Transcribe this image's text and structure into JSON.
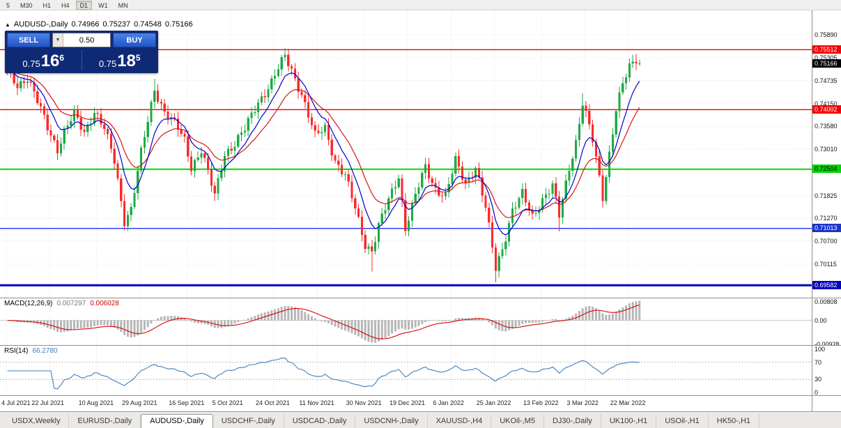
{
  "toolbar": {
    "timeframes": [
      {
        "label": "5",
        "active": false
      },
      {
        "label": "M30",
        "active": false
      },
      {
        "label": "H1",
        "active": false
      },
      {
        "label": "H4",
        "active": false
      },
      {
        "label": "D1",
        "active": true
      },
      {
        "label": "W1",
        "active": false
      },
      {
        "label": "MN",
        "active": false
      }
    ]
  },
  "chart_header": {
    "collapse_icon": "▲",
    "title": "AUDUSD-,Daily",
    "open": "0.74966",
    "high": "0.75237",
    "low": "0.74548",
    "close": "0.75166"
  },
  "trade_panel": {
    "sell_label": "SELL",
    "buy_label": "BUY",
    "volume": "0.50",
    "volume_dropdown_icon": "▼",
    "sell_price": {
      "base": "0.75",
      "big": "16",
      "sup": "6"
    },
    "buy_price": {
      "base": "0.75",
      "big": "18",
      "sup": "5"
    }
  },
  "price_axis": {
    "plain_labels": [
      "0.75890",
      "0.75305",
      "0.74735",
      "0.74150",
      "0.73580",
      "0.73010",
      "0.71825",
      "0.71270",
      "0.70700",
      "0.70115"
    ],
    "badges": [
      {
        "value": "0.75512",
        "bg": "#f40000",
        "fg": "#ffffff"
      },
      {
        "value": "0.75166",
        "bg": "#000000",
        "fg": "#ffffff"
      },
      {
        "value": "0.74002",
        "bg": "#f40000",
        "fg": "#ffffff"
      },
      {
        "value": "0.72504",
        "bg": "#00d400",
        "fg": "#000000"
      },
      {
        "value": "0.71013",
        "bg": "#1a35cc",
        "fg": "#ffffff"
      },
      {
        "value": "0.69582",
        "bg": "#0000bb",
        "fg": "#ffffff"
      }
    ]
  },
  "levels": [
    {
      "price": 0.75512,
      "color": "#f40000",
      "width": 1.4
    },
    {
      "price": 0.74002,
      "color": "#f40000",
      "width": 1.4
    },
    {
      "price": 0.72504,
      "color": "#00dd00",
      "width": 2
    },
    {
      "price": 0.71013,
      "color": "#2230ee",
      "width": 1.4
    },
    {
      "price": 0.69582,
      "color": "#0000bb",
      "width": 3
    }
  ],
  "chart_data": {
    "type": "candlestick",
    "symbol": "AUDUSD",
    "timeframe": "Daily",
    "bars": 190,
    "last_close": 0.75166,
    "price_range": {
      "top": 0.765,
      "bottom": 0.6927
    },
    "ma_fast_period": 8,
    "ma_slow_period": 17,
    "waypoints": [
      [
        0,
        0.7495
      ],
      [
        3,
        0.7462
      ],
      [
        6,
        0.7482
      ],
      [
        9,
        0.742
      ],
      [
        12,
        0.7356
      ],
      [
        15,
        0.7302
      ],
      [
        17,
        0.7345
      ],
      [
        20,
        0.7388
      ],
      [
        23,
        0.7342
      ],
      [
        26,
        0.7398
      ],
      [
        29,
        0.7352
      ],
      [
        32,
        0.727
      ],
      [
        35,
        0.7122
      ],
      [
        37,
        0.7152
      ],
      [
        40,
        0.729
      ],
      [
        44,
        0.7452
      ],
      [
        47,
        0.7396
      ],
      [
        50,
        0.7366
      ],
      [
        53,
        0.7322
      ],
      [
        55,
        0.7256
      ],
      [
        58,
        0.73
      ],
      [
        62,
        0.7182
      ],
      [
        65,
        0.729
      ],
      [
        68,
        0.7316
      ],
      [
        71,
        0.735
      ],
      [
        75,
        0.742
      ],
      [
        79,
        0.747
      ],
      [
        83,
        0.7534
      ],
      [
        85,
        0.75
      ],
      [
        88,
        0.744
      ],
      [
        92,
        0.7332
      ],
      [
        95,
        0.7356
      ],
      [
        98,
        0.7272
      ],
      [
        101,
        0.7232
      ],
      [
        104,
        0.7152
      ],
      [
        107,
        0.7062
      ],
      [
        109,
        0.7046
      ],
      [
        111,
        0.7106
      ],
      [
        114,
        0.7172
      ],
      [
        117,
        0.7236
      ],
      [
        119,
        0.7102
      ],
      [
        122,
        0.7182
      ],
      [
        125,
        0.7256
      ],
      [
        128,
        0.7202
      ],
      [
        131,
        0.7182
      ],
      [
        134,
        0.727
      ],
      [
        137,
        0.7216
      ],
      [
        140,
        0.7256
      ],
      [
        143,
        0.7152
      ],
      [
        146,
        0.7002
      ],
      [
        148,
        0.7052
      ],
      [
        151,
        0.7146
      ],
      [
        154,
        0.7186
      ],
      [
        157,
        0.7132
      ],
      [
        160,
        0.7176
      ],
      [
        163,
        0.7206
      ],
      [
        165,
        0.7132
      ],
      [
        168,
        0.7256
      ],
      [
        170,
        0.732
      ],
      [
        172,
        0.7418
      ],
      [
        175,
        0.7322
      ],
      [
        178,
        0.7182
      ],
      [
        180,
        0.7292
      ],
      [
        182,
        0.7402
      ],
      [
        184,
        0.7462
      ],
      [
        186,
        0.7506
      ],
      [
        188,
        0.7528
      ],
      [
        189,
        0.7517
      ]
    ],
    "wicks": [
      {
        "bar": 15,
        "low": 0.7288
      },
      {
        "bar": 35,
        "low": 0.7106
      },
      {
        "bar": 44,
        "high": 0.7478
      },
      {
        "bar": 62,
        "low": 0.717
      },
      {
        "bar": 83,
        "high": 0.7555
      },
      {
        "bar": 109,
        "low": 0.6993
      },
      {
        "bar": 119,
        "low": 0.7082
      },
      {
        "bar": 146,
        "low": 0.6966
      },
      {
        "bar": 165,
        "low": 0.7094
      },
      {
        "bar": 172,
        "high": 0.7441
      },
      {
        "bar": 178,
        "low": 0.7165
      },
      {
        "bar": 188,
        "high": 0.754
      }
    ],
    "date_ticks": [
      {
        "bar": 0,
        "label": "4 Jul 2021"
      },
      {
        "bar": 13,
        "label": "22 Jul 2021"
      },
      {
        "bar": 27,
        "label": "10 Aug 2021"
      },
      {
        "bar": 40,
        "label": "29 Aug 2021"
      },
      {
        "bar": 54,
        "label": "16 Sep 2021"
      },
      {
        "bar": 67,
        "label": "5 Oct 2021"
      },
      {
        "bar": 80,
        "label": "24 Oct 2021"
      },
      {
        "bar": 93,
        "label": "11 Nov 2021"
      },
      {
        "bar": 107,
        "label": "30 Nov 2021"
      },
      {
        "bar": 120,
        "label": "19 Dec 2021"
      },
      {
        "bar": 133,
        "label": "6 Jan 2022"
      },
      {
        "bar": 146,
        "label": "25 Jan 2022"
      },
      {
        "bar": 160,
        "label": "13 Feb 2022"
      },
      {
        "bar": 173,
        "label": "3 Mar 2022"
      },
      {
        "bar": 186,
        "label": "22 Mar 2022"
      }
    ]
  },
  "macd_panel": {
    "name": "MACD(12,26,9)",
    "value_main": "0.007297",
    "value_signal": "0.006028",
    "params": {
      "fast": 12,
      "slow": 26,
      "signal": 9
    },
    "range": {
      "top": 0.00864,
      "bottom": -0.00992
    },
    "axis_labels": [
      {
        "value": "0.00808",
        "v": 0.00808
      },
      {
        "value": "0.00",
        "v": 0
      },
      {
        "value": "-0.00928",
        "v": -0.00928
      }
    ]
  },
  "rsi_panel": {
    "name": "RSI(14)",
    "value": "66.2780",
    "period": 14,
    "guides": [
      70,
      30
    ],
    "axis_labels": [
      {
        "value": "100",
        "v": 100
      },
      {
        "value": "70",
        "v": 70
      },
      {
        "value": "30",
        "v": 30
      },
      {
        "value": "0",
        "v": 0
      }
    ]
  },
  "tabs": [
    {
      "label": "USDX,Weekly",
      "active": false
    },
    {
      "label": "EURUSD-,Daily",
      "active": false
    },
    {
      "label": "AUDUSD-,Daily",
      "active": true
    },
    {
      "label": "USDCHF-,Daily",
      "active": false
    },
    {
      "label": "USDCAD-,Daily",
      "active": false
    },
    {
      "label": "USDCNH-,Daily",
      "active": false
    },
    {
      "label": "XAUUSD-,H4",
      "active": false
    },
    {
      "label": "UKOil-,M5",
      "active": false
    },
    {
      "label": "DJ30-,Daily",
      "active": false
    },
    {
      "label": "UK100-,H1",
      "active": false
    },
    {
      "label": "USOil-,H1",
      "active": false
    },
    {
      "label": "HK50-,H1",
      "active": false
    }
  ],
  "colors": {
    "bull": "#1daa45",
    "bear": "#fb2a2a",
    "ma_fast": "#0000cc",
    "ma_slow": "#d41616",
    "macd_hist": "#b6b6b6",
    "macd_signal": "#e00000",
    "rsi_line": "#3f7fbf",
    "grid": "#e3e3e3"
  }
}
